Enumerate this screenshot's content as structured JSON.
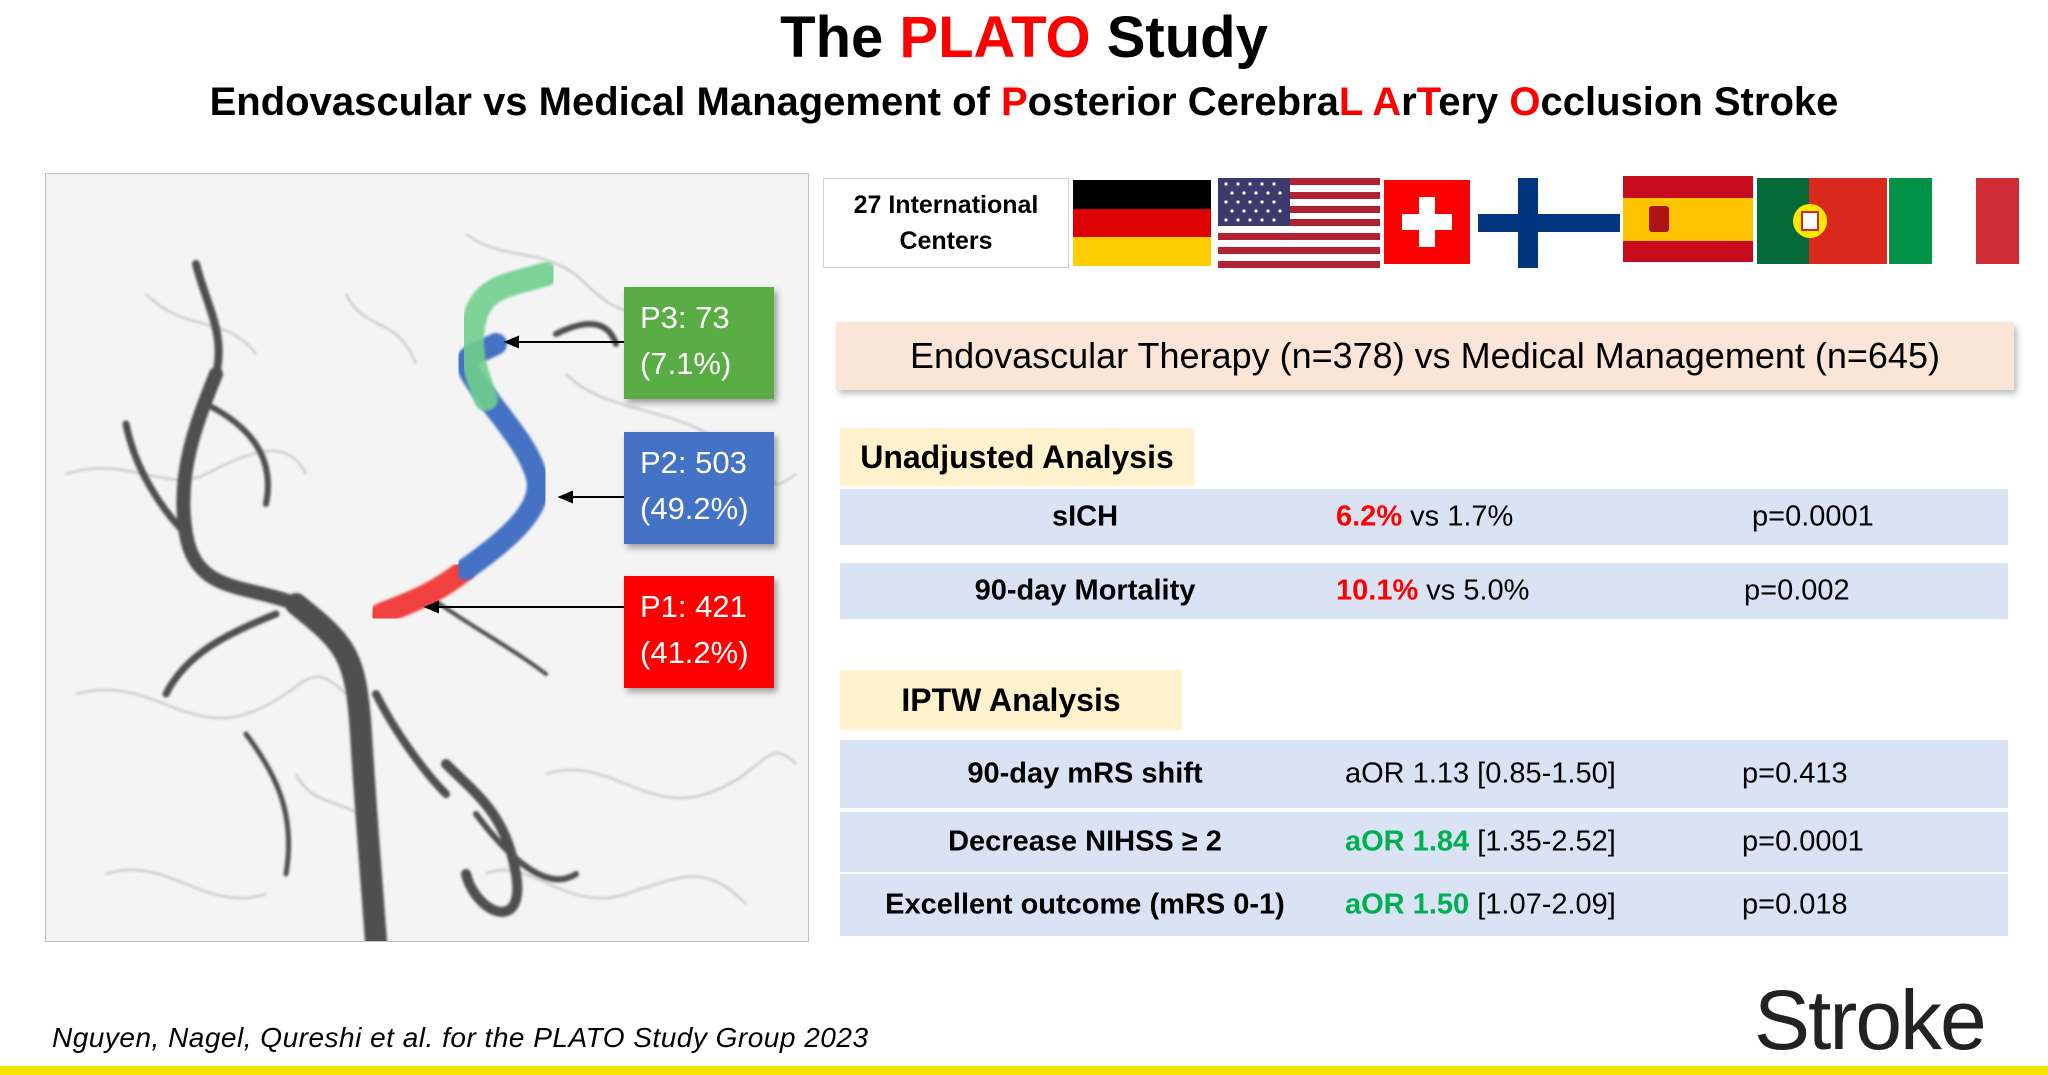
{
  "header": {
    "title_pre": "The ",
    "title_highlight": "PLATO",
    "title_post": " Study",
    "subtitle_parts": [
      {
        "text": "Endovascular vs Medical Management of ",
        "red": false
      },
      {
        "text": "P",
        "red": true
      },
      {
        "text": "osterior Cerebra",
        "red": false
      },
      {
        "text": "L",
        "red": true
      },
      {
        "text": " ",
        "red": false
      },
      {
        "text": "A",
        "red": true
      },
      {
        "text": "r",
        "red": false
      },
      {
        "text": "T",
        "red": true
      },
      {
        "text": "ery ",
        "red": false
      },
      {
        "text": "O",
        "red": true
      },
      {
        "text": "cclusion Stroke",
        "red": false
      }
    ]
  },
  "segments": [
    {
      "line1": "P3: 73",
      "line2": "(7.1%)",
      "color": "#5aac44",
      "vessel_color": "#6fcf8e",
      "percent": 7.1
    },
    {
      "line1": "P2: 503",
      "line2": "(49.2%)",
      "color": "#4472c4",
      "vessel_color": "#4472c4",
      "percent": 49.2
    },
    {
      "line1": "P1: 421",
      "line2": "(41.2%)",
      "color": "#ff0000",
      "vessel_color": "#f04040",
      "percent": 41.2
    }
  ],
  "centers": {
    "line1": "27 International",
    "line2": "Centers",
    "flags": [
      "germany-flag",
      "usa-flag",
      "switzerland-flag",
      "finland-flag",
      "spain-flag",
      "portugal-flag",
      "italy-flag"
    ]
  },
  "comparison": "Endovascular Therapy (n=378) vs Medical Management (n=645)",
  "unadjusted": {
    "heading": "Unadjusted Analysis",
    "rows": [
      {
        "label": "sICH",
        "value_hl": "6.2%",
        "value_rest": " vs 1.7%",
        "p": "p=0.0001"
      },
      {
        "label": "90-day Mortality",
        "value_hl": "10.1%",
        "value_rest": " vs 5.0%",
        "p": "p=0.002"
      }
    ]
  },
  "iptw": {
    "heading": "IPTW Analysis",
    "rows": [
      {
        "label": "90-day mRS shift",
        "value_hl": "",
        "value_rest": "aOR 1.13 [0.85-1.50]",
        "p": "p=0.413"
      },
      {
        "label": "Decrease NIHSS ≥ 2",
        "value_hl": "aOR 1.84",
        "value_rest": " [1.35-2.52]",
        "p": "p=0.0001"
      },
      {
        "label": "Excellent outcome (mRS 0-1)",
        "value_hl": "aOR 1.50",
        "value_rest": " [1.07-2.09]",
        "p": "p=0.018"
      }
    ]
  },
  "citation": "Nguyen, Nagel, Qureshi et al. for the PLATO Study Group 2023",
  "journal": "Stroke",
  "colors": {
    "accent_red": "#ff0000",
    "accent_green": "#00b050",
    "row_bg": "#dae3f3",
    "heading_bg": "#fff2cc",
    "banner_bg": "#fbe5d6",
    "footer_line": "#f5e400"
  }
}
